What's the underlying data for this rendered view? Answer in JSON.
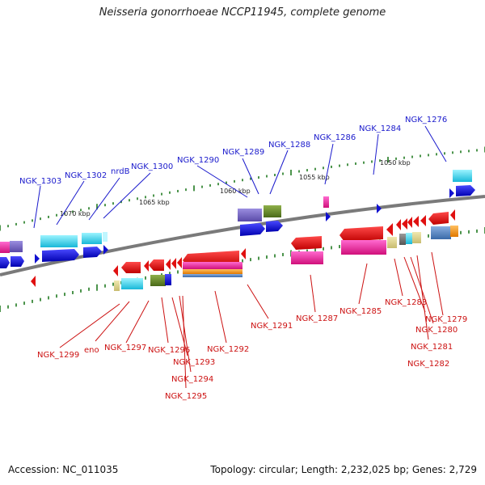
{
  "title": "Neisseria gonorrhoeae NCCP11945, complete genome",
  "footer": {
    "accession": "Accession: NC_011035",
    "summary": "Topology: circular; Length: 2,232,025 bp; Genes: 2,729"
  },
  "colors": {
    "backbone": "#7a7a7a",
    "tick": "#1f7a1f",
    "forward_label": "#1a1acc",
    "reverse_label": "#cc1111"
  },
  "scale_labels": [
    "1070 kbp",
    "1065 kbp",
    "1060 kbp",
    "1055 kbp",
    "1050 kbp"
  ],
  "top_labels": [
    "NGK_1303",
    "NGK_1302",
    "nrdB",
    "NGK_1300",
    "NGK_1290",
    "NGK_1289",
    "NGK_1288",
    "NGK_1286",
    "NGK_1284",
    "NGK_1276"
  ],
  "bottom_labels": [
    "NGK_1299",
    "eno",
    "NGK_1297",
    "NGK_1296",
    "NGK_1293",
    "NGK_1294",
    "NGK_1295",
    "NGK_1292",
    "NGK_1291",
    "NGK_1287",
    "NGK_1285",
    "NGK_1283",
    "NGK_1279",
    "NGK_1280",
    "NGK_1281",
    "NGK_1282"
  ]
}
